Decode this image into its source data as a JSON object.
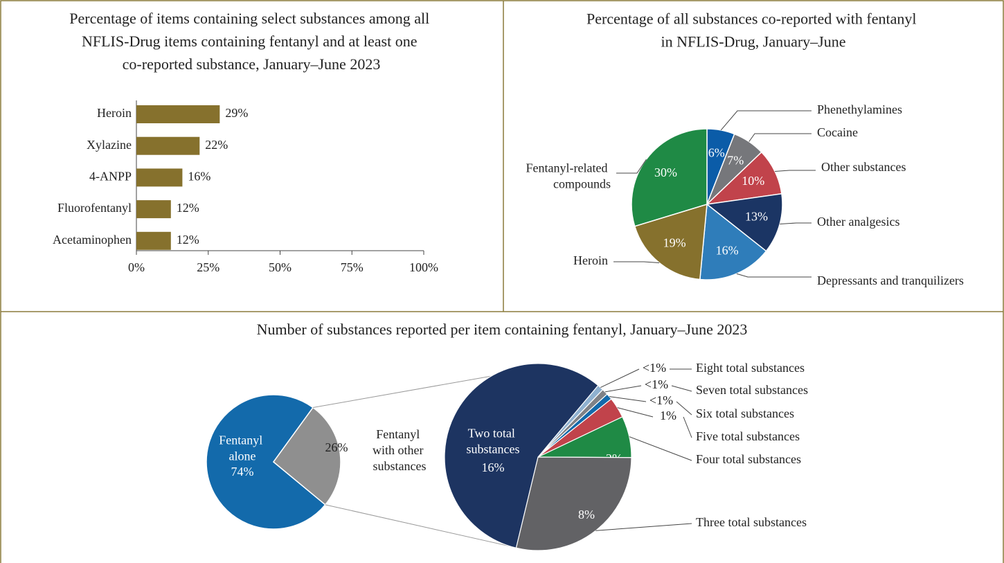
{
  "chart_data": [
    {
      "type": "bar",
      "orientation": "horizontal",
      "title": "Percentage of items containing select substances among all NFLIS-Drug items containing fentanyl and at least one co-reported substance, January–June 2023",
      "categories": [
        "Heroin",
        "Xylazine",
        "4-ANPP",
        "Fluorofentanyl",
        "Acetaminophen"
      ],
      "values": [
        29,
        22,
        16,
        12,
        12
      ],
      "value_labels": [
        "29%",
        "22%",
        "16%",
        "12%",
        "12%"
      ],
      "color": "#86712d",
      "xlim": [
        0,
        100
      ],
      "xticks": [
        {
          "value": 0,
          "label": "0%"
        },
        {
          "value": 25,
          "label": "25%"
        },
        {
          "value": 50,
          "label": "50%"
        },
        {
          "value": 75,
          "label": "75%"
        },
        {
          "value": 100,
          "label": "100%"
        }
      ]
    },
    {
      "type": "pie",
      "title": "Percentage of all substances co-reported with fentanyl in NFLIS-Drug, January–June 2023",
      "categories": [
        "Phenethylamines",
        "Cocaine",
        "Other substances",
        "Other analgesics",
        "Depressants and tranquilizers",
        "Heroin",
        "Fentanyl-related compounds"
      ],
      "values": [
        6,
        7,
        10,
        13,
        16,
        19,
        30
      ],
      "value_labels": [
        "6%",
        "7%",
        "10%",
        "13%",
        "16%",
        "19%",
        "30%"
      ],
      "colors": [
        "#0b5ca8",
        "#76777b",
        "#c1434b",
        "#1b3564",
        "#2f7dba",
        "#86712d",
        "#1f8a45"
      ]
    },
    {
      "type": "bar-of-pie",
      "title": "Number of substances reported per item containing fentanyl, January–June 2023",
      "categories": [
        "Fentanyl alone",
        "Fentanyl with other substances"
      ],
      "values": [
        74,
        26
      ],
      "value_labels": [
        "74%",
        "26%"
      ],
      "colors": [
        "#136aab",
        "#8f8f8f"
      ],
      "detail": {
        "categories": [
          "Eight total substances",
          "Seven total substances",
          "Six total substances",
          "Five total substances",
          "Four total substances",
          "Three total substances",
          "Two total substances"
        ],
        "values": [
          0.3,
          0.3,
          0.3,
          1,
          2,
          8,
          16
        ],
        "value_labels": [
          "<1%",
          "<1%",
          "<1%",
          "1%",
          "2%",
          "8%",
          "16%"
        ],
        "colors": [
          "#8fb1d0",
          "#7f8186",
          "#136aab",
          "#c1434b",
          "#1f8a45",
          "#626265",
          "#1d3461"
        ]
      }
    }
  ]
}
